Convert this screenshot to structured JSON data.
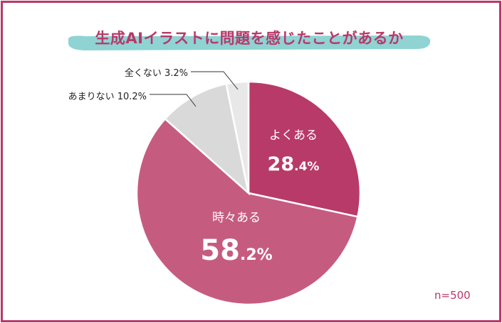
{
  "title": "生成AIイラストに問題を感じたことがあるか",
  "note": "n=500",
  "chart_data": {
    "type": "pie",
    "title": "生成AIイラストに問題を感じたことがあるか",
    "slices": [
      {
        "label": "よくある",
        "value": 28.4,
        "int": "28",
        "dec": ".4%",
        "color": "#b83a68",
        "placement": "inside"
      },
      {
        "label": "時々ある",
        "value": 58.2,
        "int": "58",
        "dec": ".2%",
        "color": "#c65b80",
        "placement": "inside"
      },
      {
        "label": "あまりない",
        "value": 10.2,
        "text": "あまりない 10.2%",
        "color": "#d9d9d9",
        "placement": "outside"
      },
      {
        "label": "全くない",
        "value": 3.2,
        "text": "全くない 3.2%",
        "color": "#e8e8e8",
        "placement": "outside"
      }
    ],
    "start_angle": "12 o'clock",
    "direction": "clockwise"
  }
}
